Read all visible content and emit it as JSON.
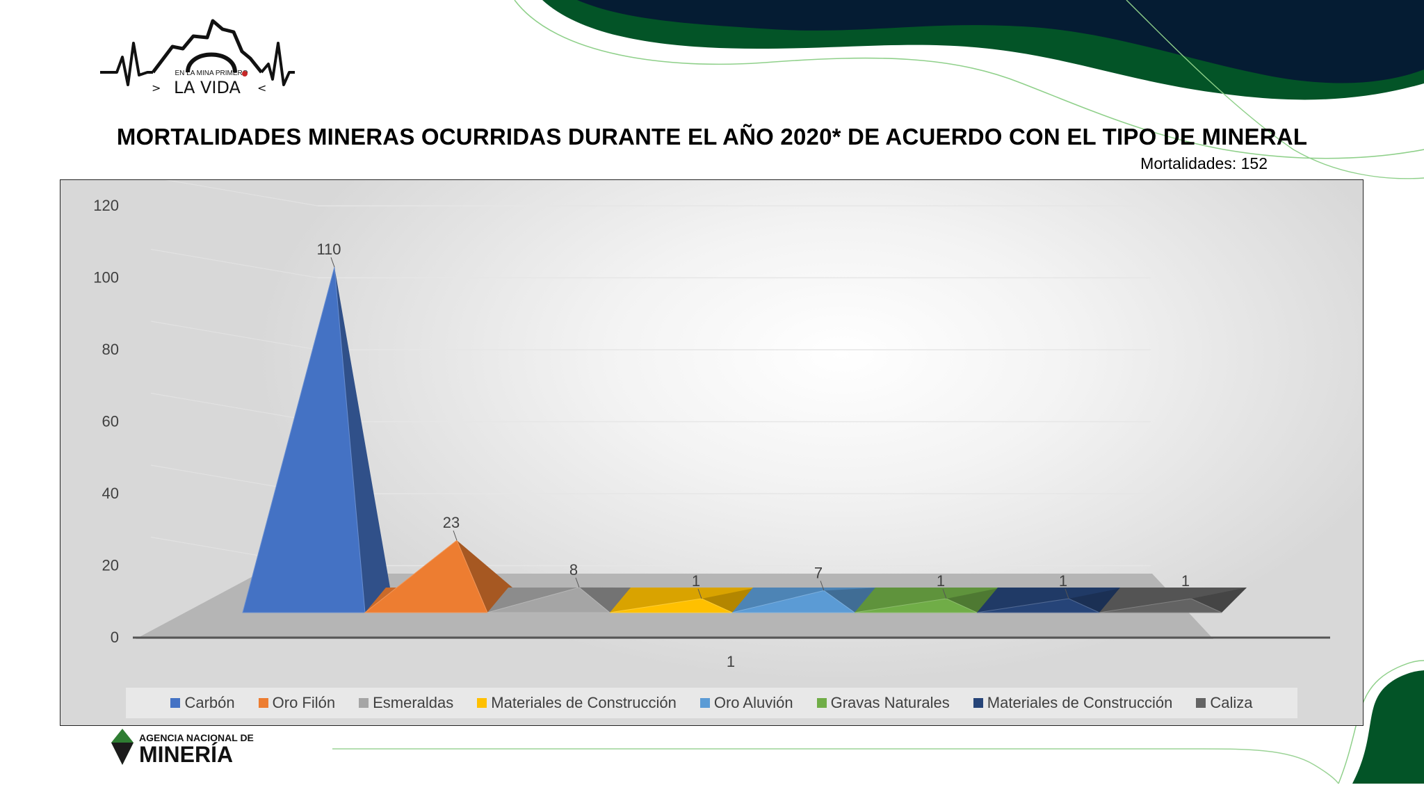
{
  "header": {
    "logo_text_top": "EN LA MINA PRIMERO",
    "logo_text_main": "LA VIDA",
    "title": "MORTALIDADES MINERAS OCURRIDAS DURANTE EL AÑO 2020* DE ACUERDO CON EL TIPO DE MINERAL",
    "subtitle": "Mortalidades: 152"
  },
  "footer": {
    "agency_line1": "AGENCIA NACIONAL DE",
    "agency_line2": "MINERÍA"
  },
  "colors": {
    "dark_navy": "#051c33",
    "dark_green": "#035427",
    "light_green_line": "#8fd08a"
  },
  "chart_data": {
    "type": "bar",
    "style": "3d-pyramid",
    "categories": [
      "1"
    ],
    "series": [
      {
        "name": "Carbón",
        "values": [
          110
        ],
        "color": "#4472c4"
      },
      {
        "name": "Oro Filón",
        "values": [
          23
        ],
        "color": "#ed7d31"
      },
      {
        "name": "Esmeraldas",
        "values": [
          8
        ],
        "color": "#a5a5a5"
      },
      {
        "name": "Materiales de Construcción",
        "values": [
          1
        ],
        "color": "#ffc000"
      },
      {
        "name": "Oro Aluvión",
        "values": [
          7
        ],
        "color": "#5b9bd5"
      },
      {
        "name": "Gravas Naturales",
        "values": [
          1
        ],
        "color": "#70ad47"
      },
      {
        "name": "Materiales de Construcción",
        "values": [
          1
        ],
        "color": "#264478"
      },
      {
        "name": "Caliza",
        "values": [
          1
        ],
        "color": "#636363"
      }
    ],
    "y_ticks": [
      "0",
      "20",
      "40",
      "60",
      "80",
      "100",
      "120"
    ],
    "ylim": [
      0,
      120
    ],
    "data_labels": true,
    "gridlines": true,
    "legend_position": "bottom"
  }
}
